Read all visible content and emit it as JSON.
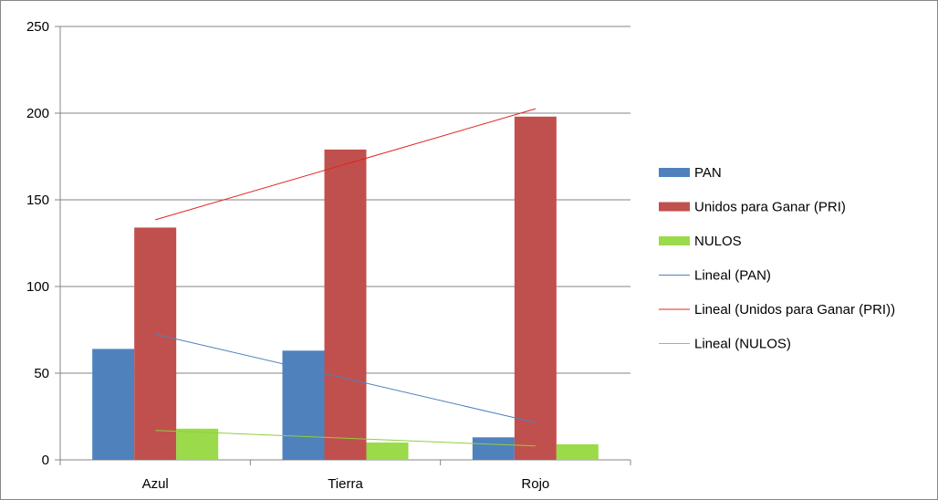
{
  "chart_data": {
    "type": "bar",
    "categories": [
      "Azul",
      "Tierra",
      "Rojo"
    ],
    "series": [
      {
        "name": "PAN",
        "color": "#4F81BD",
        "values": [
          64,
          63,
          13
        ]
      },
      {
        "name": "Unidos para Ganar (PRI)",
        "color": "#C0504D",
        "values": [
          134,
          179,
          198
        ]
      },
      {
        "name": "NULOS",
        "color": "#9BDA4A",
        "values": [
          18,
          10,
          9
        ]
      }
    ],
    "trendlines": [
      {
        "name": "Lineal (PAN)",
        "color": "#4F81BD",
        "start": 72.5,
        "end": 21.5
      },
      {
        "name": "Lineal (Unidos para Ganar (PRI))",
        "color": "#E0241F",
        "start": 138.5,
        "end": 202.5
      },
      {
        "name": "Lineal (NULOS)",
        "color": "#8FCF3A",
        "start": 17,
        "end": 8
      }
    ],
    "y_ticks": [
      "0",
      "50",
      "100",
      "150",
      "200",
      "250"
    ],
    "ylim": [
      0,
      250
    ],
    "grid": true,
    "legend_position": "right",
    "title": "",
    "xlabel": "",
    "ylabel": ""
  }
}
